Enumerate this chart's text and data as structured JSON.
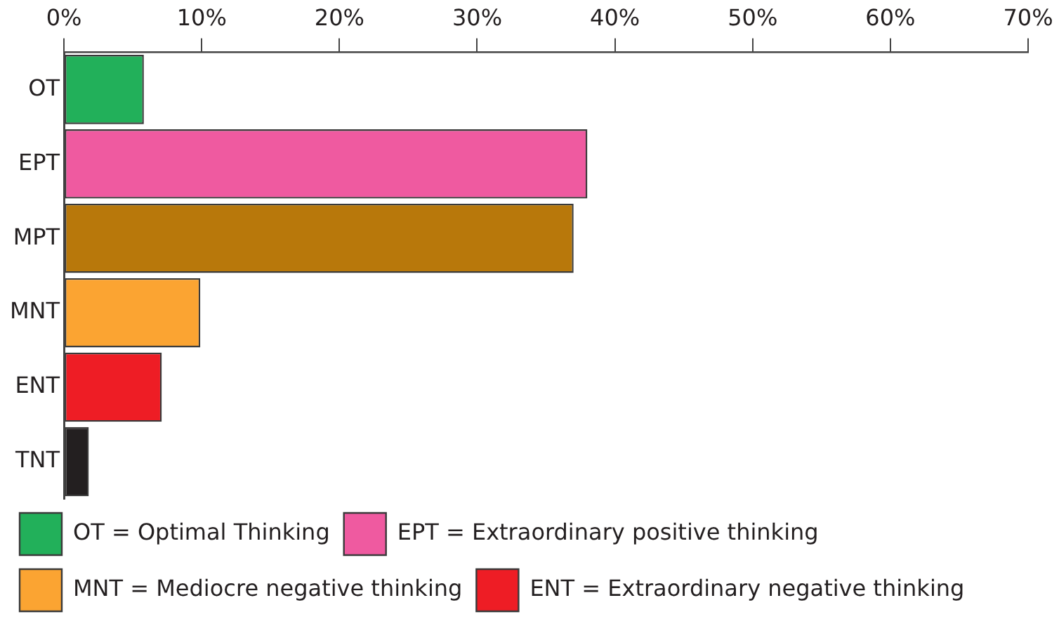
{
  "chart_data": {
    "type": "bar",
    "orientation": "horizontal",
    "stacked": true,
    "categories": [
      "OT",
      "EPT",
      "MPT",
      "MNT",
      "ENT",
      "TNT"
    ],
    "series": [
      {
        "name": "OT = Optimal Thinking",
        "color": "#22b05a",
        "values": [
          5.8,
          null,
          null,
          null,
          null,
          null
        ]
      },
      {
        "name": "EPT = Extraordinary positive thinking",
        "color": "#ef5aa0",
        "values": [
          null,
          38.0,
          null,
          null,
          null,
          null
        ]
      },
      {
        "name": "MNT = Mediocre negative thinking",
        "color": "#fba432",
        "values": [
          null,
          null,
          null,
          9.9,
          null,
          null
        ]
      },
      {
        "name": "ENT = Extraordinary negative thinking",
        "color": "#ee1d25",
        "values": [
          null,
          null,
          null,
          null,
          7.1,
          null
        ]
      },
      {
        "color": "#b8780b",
        "values": [
          null,
          null,
          37.0,
          null,
          null,
          null
        ]
      },
      {
        "color": "#231f20",
        "values": [
          null,
          null,
          null,
          null,
          null,
          1.8
        ]
      }
    ],
    "xlim": [
      0,
      70
    ],
    "xticks": [
      {
        "value": 0,
        "label": "0%"
      },
      {
        "value": 10,
        "label": "10%"
      },
      {
        "value": 20,
        "label": "20%"
      },
      {
        "value": 30,
        "label": "30%"
      },
      {
        "value": 40,
        "label": "40%"
      },
      {
        "value": 50,
        "label": "50%"
      },
      {
        "value": 60,
        "label": "60%"
      },
      {
        "value": 70,
        "label": "70%"
      }
    ],
    "grid": false,
    "legend": "bottom"
  }
}
